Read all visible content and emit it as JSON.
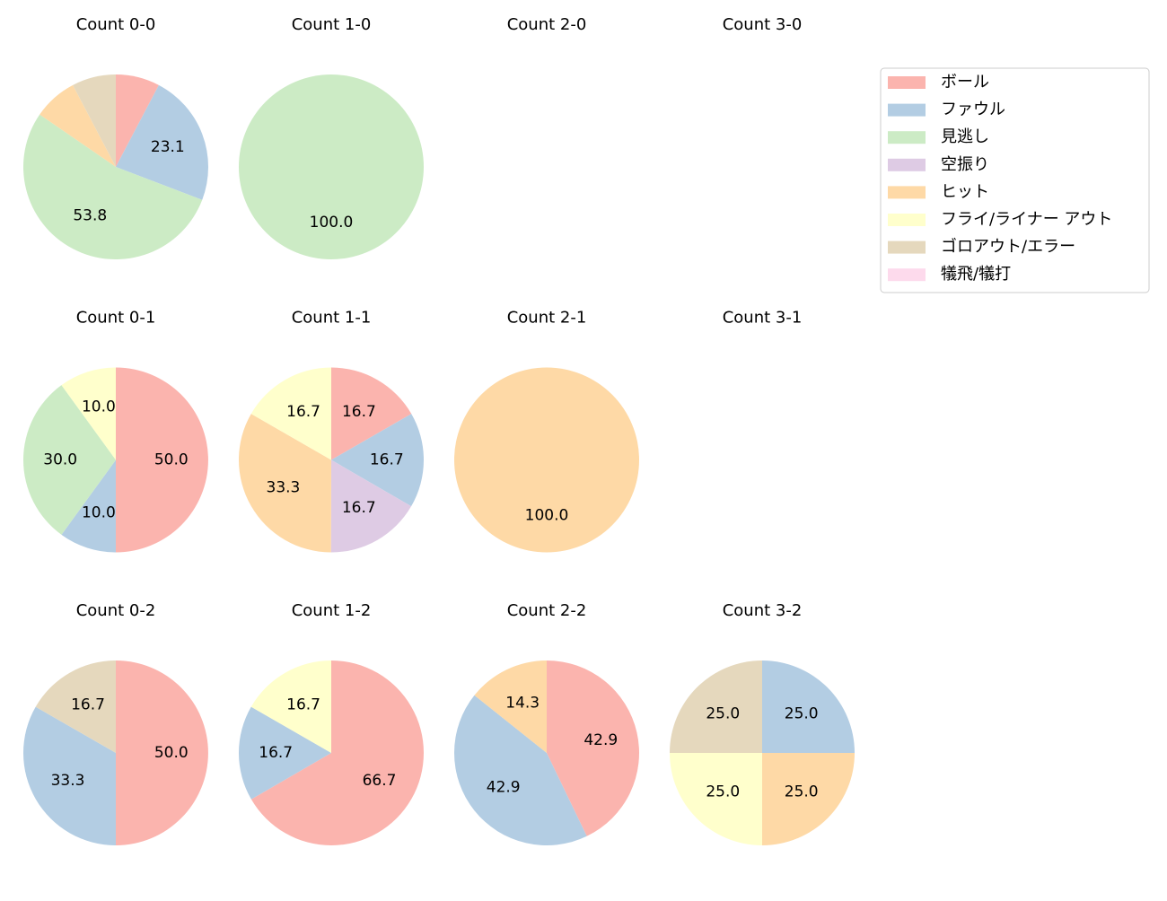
{
  "chart_data": [
    {
      "type": "pie",
      "title": "Count 0-0",
      "categories": [
        "ボール",
        "ファウル",
        "見逃し",
        "ヒット",
        "ゴロアウト/エラー"
      ],
      "values": [
        7.7,
        23.1,
        53.8,
        7.7,
        7.7
      ],
      "value_labels": [
        null,
        "23.1",
        "53.8",
        null,
        null
      ]
    },
    {
      "type": "pie",
      "title": "Count 1-0",
      "categories": [
        "見逃し"
      ],
      "values": [
        100
      ],
      "value_labels": [
        "100.0"
      ]
    },
    {
      "type": "pie",
      "title": "Count 2-0",
      "categories": [],
      "values": [],
      "value_labels": []
    },
    {
      "type": "pie",
      "title": "Count 3-0",
      "categories": [],
      "values": [],
      "value_labels": []
    },
    {
      "type": "pie",
      "title": "Count 0-1",
      "categories": [
        "ボール",
        "ファウル",
        "見逃し",
        "フライ/ライナー アウト"
      ],
      "values": [
        50,
        10,
        30,
        10
      ],
      "value_labels": [
        "50.0",
        "10.0",
        "30.0",
        "10.0"
      ]
    },
    {
      "type": "pie",
      "title": "Count 1-1",
      "categories": [
        "ボール",
        "ファウル",
        "空振り",
        "ヒット",
        "フライ/ライナー アウト"
      ],
      "values": [
        16.7,
        16.7,
        16.7,
        33.3,
        16.7
      ],
      "value_labels": [
        "16.7",
        "16.7",
        "16.7",
        "33.3",
        "16.7"
      ]
    },
    {
      "type": "pie",
      "title": "Count 2-1",
      "categories": [
        "ヒット"
      ],
      "values": [
        100
      ],
      "value_labels": [
        "100.0"
      ]
    },
    {
      "type": "pie",
      "title": "Count 3-1",
      "categories": [],
      "values": [],
      "value_labels": []
    },
    {
      "type": "pie",
      "title": "Count 0-2",
      "categories": [
        "ボール",
        "ファウル",
        "ゴロアウト/エラー"
      ],
      "values": [
        50,
        33.3,
        16.7
      ],
      "value_labels": [
        "50.0",
        "33.3",
        "16.7"
      ]
    },
    {
      "type": "pie",
      "title": "Count 1-2",
      "categories": [
        "ボール",
        "ファウル",
        "フライ/ライナー アウト"
      ],
      "values": [
        66.7,
        16.7,
        16.7
      ],
      "value_labels": [
        "66.7",
        "16.7",
        "16.7"
      ]
    },
    {
      "type": "pie",
      "title": "Count 2-2",
      "categories": [
        "ボール",
        "ファウル",
        "ヒット"
      ],
      "values": [
        42.9,
        42.9,
        14.3
      ],
      "value_labels": [
        "42.9",
        "42.9",
        "14.3"
      ]
    },
    {
      "type": "pie",
      "title": "Count 3-2",
      "categories": [
        "ファウル",
        "ヒット",
        "フライ/ライナー アウト",
        "ゴロアウト/エラー"
      ],
      "values": [
        25,
        25,
        25,
        25
      ],
      "value_labels": [
        "25.0",
        "25.0",
        "25.0",
        "25.0"
      ]
    }
  ],
  "legend": {
    "categories": [
      "ボール",
      "ファウル",
      "見逃し",
      "空振り",
      "ヒット",
      "フライ/ライナー アウト",
      "ゴロアウト/エラー",
      "犠飛/犠打"
    ],
    "colors": [
      "#fbb4ae",
      "#b3cde3",
      "#ccebc5",
      "#decbe4",
      "#fed9a6",
      "#ffffcc",
      "#e5d8bd",
      "#fddaec"
    ]
  }
}
